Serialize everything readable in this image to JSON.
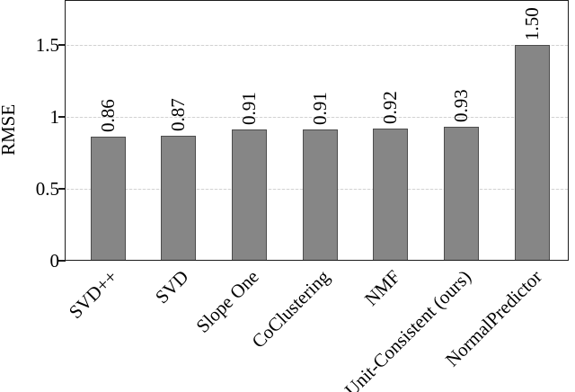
{
  "figure": {
    "background": "#ffffff",
    "text_color": "#000000"
  },
  "chart_data": {
    "type": "bar",
    "title": "",
    "xlabel": "",
    "ylabel": "RMSE",
    "categories": [
      "SVD++",
      "SVD",
      "Slope One",
      "CoClustering",
      "NMF",
      "Unit-Consistent (ours)",
      "NormalPredictor"
    ],
    "values": [
      0.86,
      0.87,
      0.91,
      0.91,
      0.92,
      0.93,
      1.5
    ],
    "value_labels": [
      "0.86",
      "0.87",
      "0.91",
      "0.91",
      "0.92",
      "0.93",
      "1.50"
    ],
    "yticks": [
      {
        "value": 0.0,
        "label": "0"
      },
      {
        "value": 0.5,
        "label": "0.5"
      },
      {
        "value": 1.0,
        "label": "1"
      },
      {
        "value": 1.5,
        "label": "1.5"
      }
    ],
    "ylim": [
      0,
      1.8
    ],
    "grid": "horizontal-dashed",
    "legend": "none",
    "bar_fill": "#868686",
    "bar_stroke": "#4d4d4d",
    "axis_color": "#1c1c1c",
    "grid_color": "#d2d2d2"
  }
}
